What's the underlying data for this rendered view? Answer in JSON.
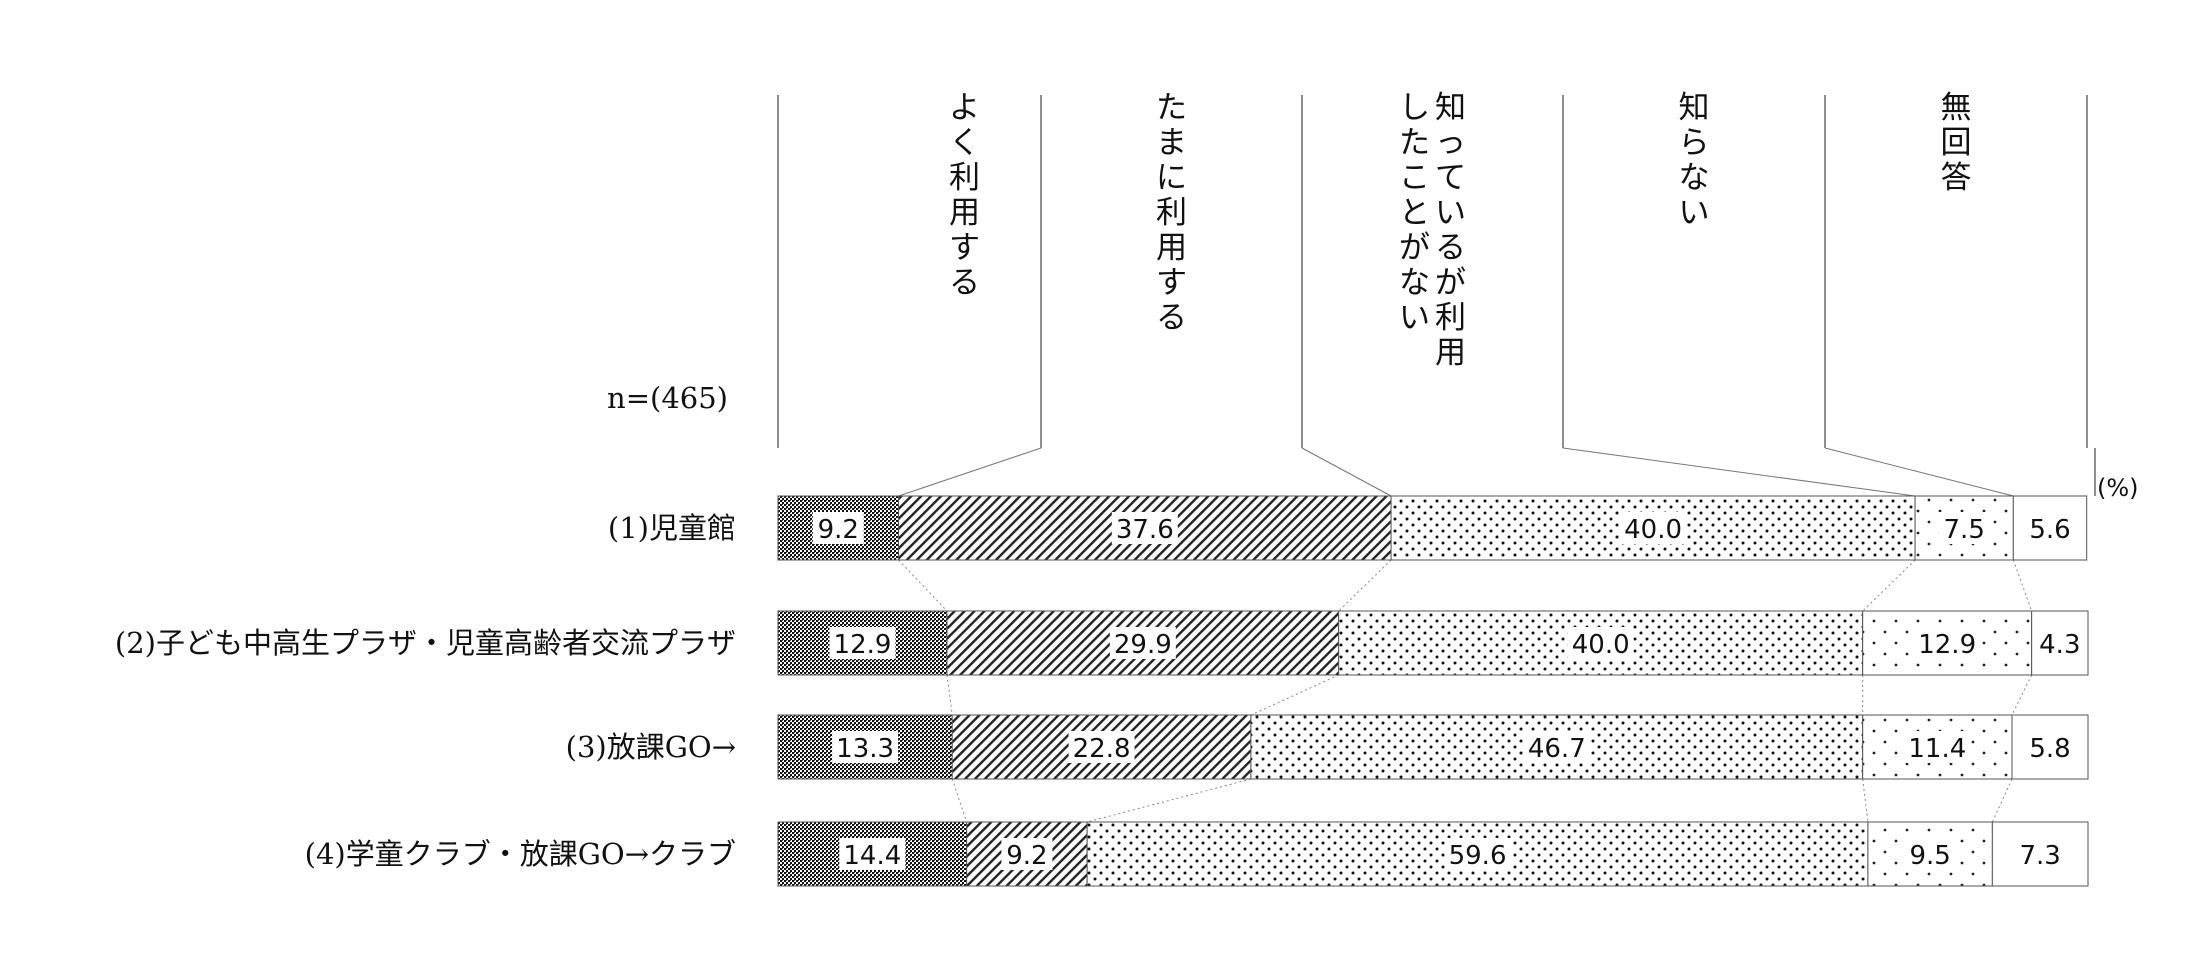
{
  "chart_data": {
    "type": "bar",
    "orientation": "horizontal",
    "stacked": "100%",
    "sample_label": "n=(465)",
    "unit": "(%)",
    "categories": [
      "(1)児童館",
      "(2)子ども中高生プラザ・児童高齢者交流プラザ",
      "(3)放課GO→",
      "(4)学童クラブ・放課GO→クラブ"
    ],
    "series": [
      {
        "name": "よく利用する",
        "values": [
          9.2,
          12.9,
          13.3,
          14.4
        ],
        "pattern": "dense-checker"
      },
      {
        "name": "たまに利用する",
        "values": [
          37.6,
          29.9,
          22.8,
          9.2
        ],
        "pattern": "diagonal"
      },
      {
        "name": "知っているが利用したことがない",
        "values": [
          40.0,
          40.0,
          46.7,
          59.6
        ],
        "pattern": "dots"
      },
      {
        "name": "知らない",
        "values": [
          7.5,
          12.9,
          11.4,
          9.5
        ],
        "pattern": "sparse-dots"
      },
      {
        "name": "無回答",
        "values": [
          5.6,
          4.3,
          5.8,
          7.3
        ],
        "pattern": "blank"
      }
    ],
    "header_lines": [
      [
        "よく利用する"
      ],
      [
        "たまに利用する"
      ],
      [
        "知っているが利用",
        "したことがない"
      ],
      [
        "知らない"
      ],
      [
        "無回答"
      ]
    ],
    "xlim": [
      0,
      100
    ],
    "grid": false,
    "legend": "column headers above bars",
    "connector_lines": true
  }
}
